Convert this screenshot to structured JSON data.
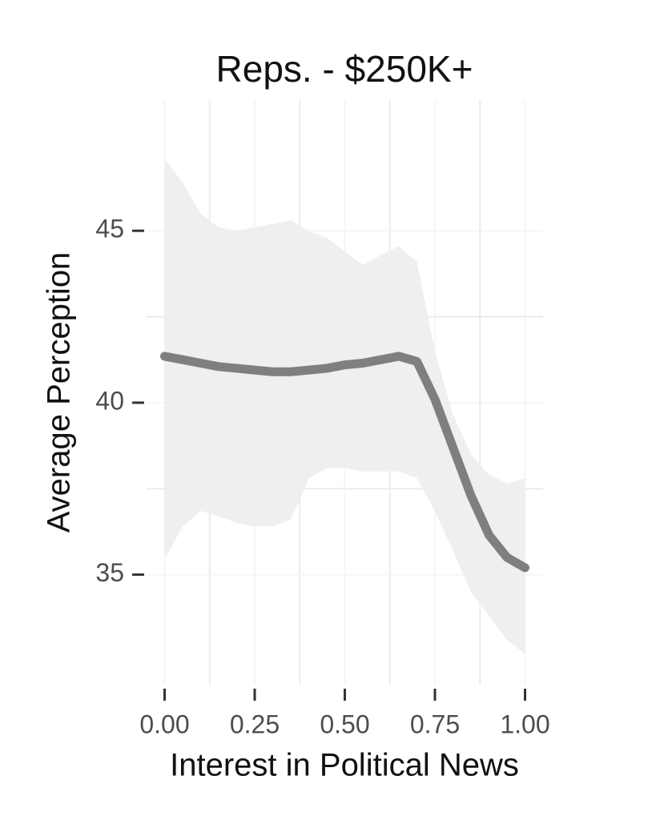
{
  "chart_data": {
    "type": "line",
    "title": "Reps. - $250K+",
    "x_label": "Interest in Political News",
    "y_label": "Average Perception",
    "x": [
      0,
      0.05,
      0.1,
      0.15,
      0.2,
      0.25,
      0.3,
      0.35,
      0.4,
      0.45,
      0.5,
      0.55,
      0.6,
      0.65,
      0.7,
      0.75,
      0.8,
      0.85,
      0.9,
      0.95,
      1.0
    ],
    "values": [
      41.35,
      41.25,
      41.15,
      41.05,
      41.0,
      40.95,
      40.9,
      40.9,
      40.95,
      41.0,
      41.1,
      41.15,
      41.25,
      41.35,
      41.2,
      40.1,
      38.7,
      37.3,
      36.15,
      35.5,
      35.2
    ],
    "upper": [
      47.1,
      46.4,
      45.5,
      45.1,
      45.0,
      45.1,
      45.2,
      45.3,
      45.0,
      44.8,
      44.4,
      44.0,
      44.3,
      44.55,
      44.1,
      41.5,
      39.65,
      38.5,
      37.9,
      37.65,
      37.8
    ],
    "lower": [
      35.45,
      36.4,
      36.85,
      36.7,
      36.5,
      36.4,
      36.4,
      36.6,
      37.8,
      38.1,
      38.1,
      38.0,
      38.0,
      38.0,
      37.8,
      36.85,
      35.7,
      34.5,
      33.8,
      33.1,
      32.7
    ],
    "color": "#7f7f7f",
    "band_color": "#efefef",
    "xlim": [
      -0.05,
      1.05
    ],
    "ylim": [
      31.8,
      48.8
    ],
    "xticks": [
      {
        "value": 0,
        "label": "0.00"
      },
      {
        "value": 0.25,
        "label": "0.25"
      },
      {
        "value": 0.5,
        "label": "0.50"
      },
      {
        "value": 0.75,
        "label": "0.75"
      },
      {
        "value": 1,
        "label": "1.00"
      }
    ],
    "yticks": [
      35,
      40,
      45
    ],
    "grid": true
  }
}
